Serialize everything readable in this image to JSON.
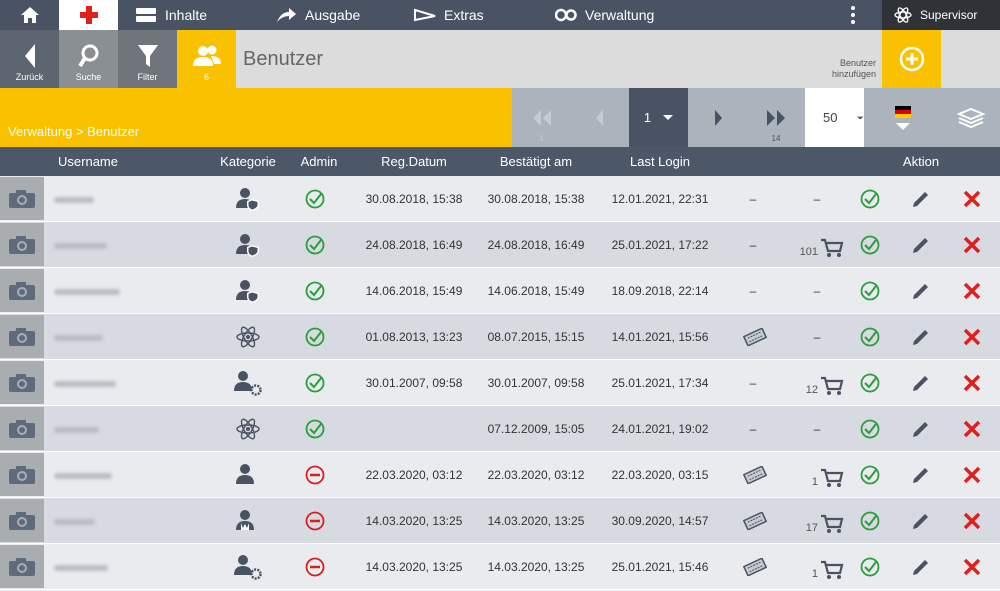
{
  "nav": {
    "items": [
      "Inhalte",
      "Ausgabe",
      "Extras",
      "Verwaltung"
    ],
    "user": "Supervisor"
  },
  "toolbar": {
    "back": "Zurück",
    "search": "Suche",
    "filter": "Filter",
    "user_count": 6,
    "title": "Benutzer",
    "add": "Benutzer hinzufügen"
  },
  "breadcrumb": "Verwaltung > Benutzer",
  "pagination": {
    "first": 1,
    "current": 1,
    "last": 14,
    "page_size": 50
  },
  "table": {
    "columns": [
      "Username",
      "Kategorie",
      "Admin",
      "Reg.Datum",
      "Bestätigt am",
      "Last Login",
      "Aktion"
    ],
    "rows": [
      {
        "reg": "30.08.2018, 15:38",
        "confirmed": "30.08.2018, 15:38",
        "last_login": "12.01.2021, 22:31",
        "voucher": "–",
        "orders": "–"
      },
      {
        "reg": "24.08.2018, 16:49",
        "confirmed": "24.08.2018, 16:49",
        "last_login": "25.01.2021, 17:22",
        "voucher": "–",
        "orders": 101
      },
      {
        "reg": "14.06.2018, 15:49",
        "confirmed": "14.06.2018, 15:49",
        "last_login": "18.09.2018, 22:14",
        "voucher": "–",
        "orders": "–"
      },
      {
        "reg": "01.08.2013, 13:23",
        "confirmed": "08.07.2015, 15:15",
        "last_login": "14.01.2021, 15:56",
        "orders": "–"
      },
      {
        "reg": "30.01.2007, 09:58",
        "confirmed": "30.01.2007, 09:58",
        "last_login": "25.01.2021, 17:34",
        "voucher": "–",
        "orders": 12
      },
      {
        "confirmed": "07.12.2009, 15:05",
        "last_login": "24.01.2021, 19:02",
        "voucher": "–",
        "orders": "–"
      },
      {
        "reg": "22.03.2020, 03:12",
        "confirmed": "22.03.2020, 03:12",
        "last_login": "22.03.2020, 03:15",
        "orders": 1
      },
      {
        "reg": "14.03.2020, 13:25",
        "confirmed": "14.03.2020, 13:25",
        "last_login": "30.09.2020, 14:57",
        "orders": 17
      },
      {
        "reg": "14.03.2020, 13:25",
        "confirmed": "14.03.2020, 13:25",
        "last_login": "25.01.2021, 15:46",
        "orders": 1
      }
    ]
  }
}
